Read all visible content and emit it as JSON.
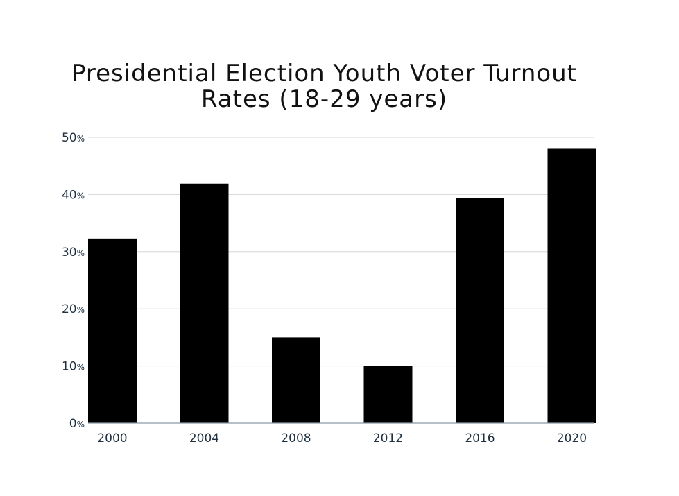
{
  "chart_data": {
    "type": "bar",
    "title_lines": [
      "Presidential Election Youth Voter Turnout",
      "Rates (18-29 years)"
    ],
    "categories": [
      "2000",
      "2004",
      "2008",
      "2012",
      "2016",
      "2020"
    ],
    "values": [
      32.3,
      41.9,
      15,
      10,
      39.4,
      48
    ],
    "ylim": [
      0,
      50
    ],
    "yticks": [
      0,
      10,
      20,
      30,
      40,
      50
    ],
    "ytick_suffix": "%",
    "xlabel": "",
    "ylabel": "",
    "grid": true,
    "legend": "none"
  },
  "colors": {
    "bar": "#000000",
    "grid": "#d6d6d6",
    "axis": "#8a9aa6",
    "tick_text": "#1f3040",
    "title": "#111111"
  }
}
